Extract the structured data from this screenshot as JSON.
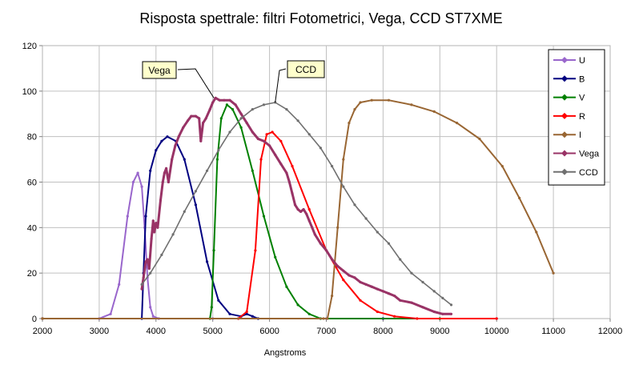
{
  "chart_data": {
    "type": "line",
    "title": "Risposta spettrale: filtri Fotometrici, Vega, CCD ST7XME",
    "xlabel": "Angstroms",
    "ylabel": "",
    "xlim": [
      2000,
      12000
    ],
    "ylim": [
      0,
      120
    ],
    "xticks": [
      2000,
      3000,
      4000,
      5000,
      6000,
      7000,
      8000,
      9000,
      10000,
      11000,
      12000
    ],
    "yticks": [
      0,
      20,
      40,
      60,
      80,
      100,
      120
    ],
    "grid": true,
    "legend_position": "top-right",
    "series": [
      {
        "name": "U",
        "color": "#9966cc",
        "marker": "diamond",
        "points": [
          [
            2000,
            0
          ],
          [
            3000,
            0
          ],
          [
            3200,
            2
          ],
          [
            3350,
            15
          ],
          [
            3500,
            45
          ],
          [
            3600,
            60
          ],
          [
            3680,
            64
          ],
          [
            3750,
            58
          ],
          [
            3800,
            40
          ],
          [
            3850,
            18
          ],
          [
            3900,
            5
          ],
          [
            3950,
            1
          ],
          [
            4050,
            0
          ],
          [
            5000,
            0
          ],
          [
            7000,
            0
          ],
          [
            10000,
            0
          ]
        ]
      },
      {
        "name": "B",
        "color": "#000080",
        "marker": "diamond",
        "points": [
          [
            2000,
            0
          ],
          [
            3750,
            0
          ],
          [
            3780,
            20
          ],
          [
            3820,
            45
          ],
          [
            3900,
            65
          ],
          [
            4000,
            74
          ],
          [
            4100,
            78
          ],
          [
            4200,
            80
          ],
          [
            4350,
            78
          ],
          [
            4500,
            70
          ],
          [
            4700,
            50
          ],
          [
            4900,
            25
          ],
          [
            5100,
            8
          ],
          [
            5300,
            2
          ],
          [
            5500,
            1
          ],
          [
            5600,
            2
          ],
          [
            5700,
            1
          ],
          [
            5800,
            0
          ],
          [
            8000,
            0
          ]
        ]
      },
      {
        "name": "V",
        "color": "#008000",
        "marker": "diamond",
        "points": [
          [
            2000,
            0
          ],
          [
            4950,
            0
          ],
          [
            4980,
            5
          ],
          [
            5020,
            30
          ],
          [
            5080,
            70
          ],
          [
            5150,
            88
          ],
          [
            5250,
            94
          ],
          [
            5350,
            92
          ],
          [
            5500,
            84
          ],
          [
            5700,
            65
          ],
          [
            5900,
            45
          ],
          [
            6100,
            27
          ],
          [
            6300,
            14
          ],
          [
            6500,
            6
          ],
          [
            6700,
            2
          ],
          [
            6900,
            0
          ],
          [
            9000,
            0
          ]
        ]
      },
      {
        "name": "R",
        "color": "#ff0000",
        "marker": "diamond",
        "points": [
          [
            2000,
            0
          ],
          [
            5450,
            0
          ],
          [
            5600,
            3
          ],
          [
            5750,
            30
          ],
          [
            5850,
            70
          ],
          [
            5950,
            81
          ],
          [
            6050,
            82
          ],
          [
            6200,
            78
          ],
          [
            6400,
            67
          ],
          [
            6700,
            48
          ],
          [
            7000,
            30
          ],
          [
            7300,
            17
          ],
          [
            7600,
            8
          ],
          [
            7900,
            3
          ],
          [
            8200,
            1
          ],
          [
            8600,
            0
          ],
          [
            10000,
            0
          ]
        ]
      },
      {
        "name": "I",
        "color": "#996633",
        "marker": "diamond",
        "points": [
          [
            2000,
            0
          ],
          [
            6950,
            0
          ],
          [
            7020,
            0
          ],
          [
            7100,
            10
          ],
          [
            7200,
            40
          ],
          [
            7300,
            70
          ],
          [
            7400,
            86
          ],
          [
            7500,
            92
          ],
          [
            7600,
            95
          ],
          [
            7800,
            96
          ],
          [
            8100,
            96
          ],
          [
            8500,
            94
          ],
          [
            8900,
            91
          ],
          [
            9300,
            86
          ],
          [
            9700,
            79
          ],
          [
            10100,
            67
          ],
          [
            10400,
            53
          ],
          [
            10700,
            38
          ],
          [
            11000,
            20
          ]
        ]
      },
      {
        "name": "Vega",
        "color": "#993366",
        "marker": "diamond",
        "points": [
          [
            3750,
            13
          ],
          [
            3780,
            18
          ],
          [
            3820,
            25
          ],
          [
            3850,
            26
          ],
          [
            3880,
            22
          ],
          [
            3920,
            35
          ],
          [
            3950,
            43
          ],
          [
            3970,
            38
          ],
          [
            4000,
            42
          ],
          [
            4030,
            40
          ],
          [
            4080,
            52
          ],
          [
            4120,
            60
          ],
          [
            4150,
            64
          ],
          [
            4180,
            66
          ],
          [
            4220,
            60
          ],
          [
            4280,
            70
          ],
          [
            4340,
            76
          ],
          [
            4400,
            80
          ],
          [
            4480,
            84
          ],
          [
            4560,
            87
          ],
          [
            4620,
            89
          ],
          [
            4700,
            89
          ],
          [
            4760,
            88
          ],
          [
            4790,
            78
          ],
          [
            4830,
            86
          ],
          [
            4880,
            88
          ],
          [
            4950,
            92
          ],
          [
            5000,
            95
          ],
          [
            5050,
            97
          ],
          [
            5120,
            96
          ],
          [
            5200,
            96
          ],
          [
            5300,
            96
          ],
          [
            5400,
            94
          ],
          [
            5500,
            90
          ],
          [
            5600,
            86
          ],
          [
            5700,
            82
          ],
          [
            5800,
            79
          ],
          [
            5900,
            78
          ],
          [
            6000,
            76
          ],
          [
            6100,
            72
          ],
          [
            6200,
            68
          ],
          [
            6300,
            64
          ],
          [
            6350,
            60
          ],
          [
            6400,
            55
          ],
          [
            6450,
            50
          ],
          [
            6500,
            48
          ],
          [
            6550,
            47
          ],
          [
            6600,
            48
          ],
          [
            6650,
            46
          ],
          [
            6700,
            43
          ],
          [
            6750,
            40
          ],
          [
            6800,
            37
          ],
          [
            6900,
            33
          ],
          [
            7000,
            30
          ],
          [
            7100,
            26
          ],
          [
            7200,
            23
          ],
          [
            7300,
            21
          ],
          [
            7400,
            19
          ],
          [
            7500,
            18
          ],
          [
            7600,
            16
          ],
          [
            7700,
            15
          ],
          [
            7800,
            14
          ],
          [
            7900,
            13
          ],
          [
            8000,
            12
          ],
          [
            8100,
            11
          ],
          [
            8200,
            10
          ],
          [
            8300,
            8
          ],
          [
            8500,
            7
          ],
          [
            8700,
            5
          ],
          [
            8900,
            3
          ],
          [
            9050,
            2
          ],
          [
            9200,
            2
          ]
        ]
      },
      {
        "name": "CCD",
        "color": "#707070",
        "marker": "diamond",
        "points": [
          [
            3750,
            15
          ],
          [
            3900,
            20
          ],
          [
            4100,
            28
          ],
          [
            4300,
            37
          ],
          [
            4500,
            47
          ],
          [
            4700,
            56
          ],
          [
            4900,
            65
          ],
          [
            5100,
            74
          ],
          [
            5300,
            82
          ],
          [
            5500,
            88
          ],
          [
            5700,
            92
          ],
          [
            5900,
            94
          ],
          [
            6100,
            95
          ],
          [
            6300,
            92
          ],
          [
            6500,
            87
          ],
          [
            6700,
            81
          ],
          [
            6900,
            75
          ],
          [
            7100,
            67
          ],
          [
            7300,
            58
          ],
          [
            7500,
            50
          ],
          [
            7700,
            44
          ],
          [
            7900,
            38
          ],
          [
            8100,
            33
          ],
          [
            8300,
            26
          ],
          [
            8500,
            20
          ],
          [
            8700,
            16
          ],
          [
            8900,
            12
          ],
          [
            9050,
            9
          ],
          [
            9200,
            6
          ]
        ]
      }
    ],
    "annotations": [
      {
        "text": "Vega",
        "target": [
          5020,
          97
        ]
      },
      {
        "text": "CCD",
        "target": [
          6100,
          95
        ]
      }
    ]
  }
}
